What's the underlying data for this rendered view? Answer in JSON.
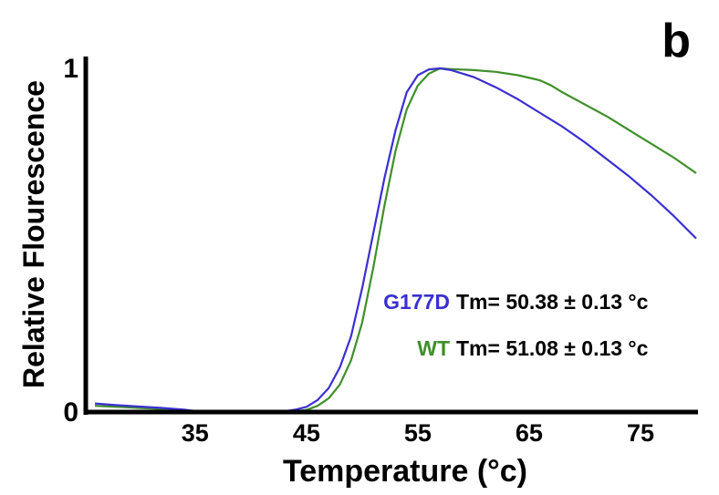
{
  "panel_label": "b",
  "chart_data": {
    "type": "line",
    "xlabel": "Temperature (°c)",
    "ylabel": "Relative Flourescence",
    "xlim": [
      26,
      80
    ],
    "ylim": [
      0,
      1
    ],
    "x_ticks": [
      35,
      45,
      55,
      65,
      75
    ],
    "y_ticks": [
      0,
      1
    ],
    "y_tick_labels": [
      "0",
      "1"
    ],
    "colors": {
      "g177d": "#3a2fd0",
      "wt": "#3f8f2a"
    },
    "series": [
      {
        "name": "G177D",
        "color": "#3a2fd0",
        "points": [
          [
            26,
            0.025
          ],
          [
            28,
            0.02
          ],
          [
            30,
            0.016
          ],
          [
            32,
            0.012
          ],
          [
            34,
            0.007
          ],
          [
            35,
            0.003
          ],
          [
            37,
            0.0
          ],
          [
            39,
            0.0
          ],
          [
            41,
            0.0
          ],
          [
            42.5,
            0.0
          ],
          [
            43,
            0.002
          ],
          [
            44,
            0.007
          ],
          [
            45,
            0.015
          ],
          [
            46,
            0.035
          ],
          [
            47,
            0.07
          ],
          [
            48,
            0.13
          ],
          [
            49,
            0.22
          ],
          [
            50,
            0.36
          ],
          [
            51,
            0.52
          ],
          [
            52,
            0.68
          ],
          [
            53,
            0.82
          ],
          [
            54,
            0.93
          ],
          [
            55,
            0.98
          ],
          [
            56,
            0.997
          ],
          [
            57,
            1.0
          ],
          [
            58,
            0.995
          ],
          [
            60,
            0.975
          ],
          [
            62,
            0.945
          ],
          [
            64,
            0.91
          ],
          [
            66,
            0.87
          ],
          [
            68,
            0.83
          ],
          [
            70,
            0.785
          ],
          [
            72,
            0.735
          ],
          [
            74,
            0.685
          ],
          [
            76,
            0.63
          ],
          [
            78,
            0.57
          ],
          [
            80,
            0.505
          ]
        ]
      },
      {
        "name": "WT",
        "color": "#3f8f2a",
        "points": [
          [
            26,
            0.018
          ],
          [
            28,
            0.015
          ],
          [
            30,
            0.012
          ],
          [
            32,
            0.009
          ],
          [
            34,
            0.005
          ],
          [
            35,
            0.002
          ],
          [
            37,
            0.0
          ],
          [
            39,
            0.0
          ],
          [
            41,
            0.0
          ],
          [
            43,
            0.0
          ],
          [
            44,
            0.002
          ],
          [
            45,
            0.006
          ],
          [
            46,
            0.018
          ],
          [
            47,
            0.04
          ],
          [
            48,
            0.08
          ],
          [
            49,
            0.15
          ],
          [
            50,
            0.26
          ],
          [
            51,
            0.42
          ],
          [
            52,
            0.6
          ],
          [
            53,
            0.76
          ],
          [
            54,
            0.88
          ],
          [
            55,
            0.95
          ],
          [
            56,
            0.985
          ],
          [
            57,
            1.0
          ],
          [
            58,
            0.998
          ],
          [
            60,
            0.995
          ],
          [
            62,
            0.99
          ],
          [
            64,
            0.98
          ],
          [
            66,
            0.965
          ],
          [
            67,
            0.95
          ],
          [
            68,
            0.93
          ],
          [
            70,
            0.895
          ],
          [
            72,
            0.86
          ],
          [
            74,
            0.82
          ],
          [
            76,
            0.78
          ],
          [
            78,
            0.74
          ],
          [
            80,
            0.695
          ]
        ]
      }
    ],
    "annotations": [
      {
        "label": "G177D",
        "text": "Tm= 50.38 ± 0.13 °c",
        "color": "#3a2fd0"
      },
      {
        "label": "WT",
        "text": "Tm= 51.08 ± 0.13 °c",
        "color": "#3f8f2a"
      }
    ]
  }
}
